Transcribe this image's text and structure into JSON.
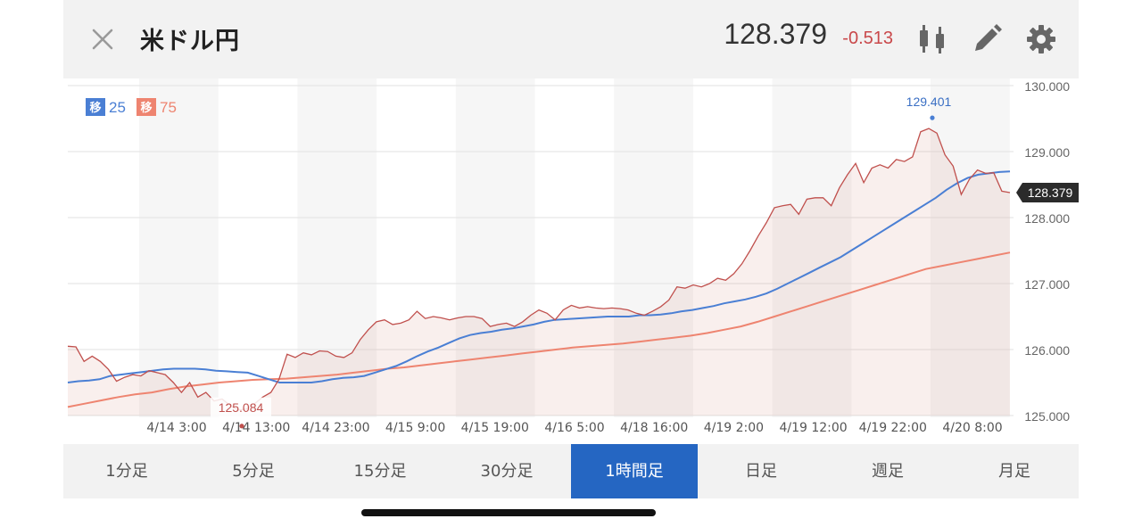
{
  "header": {
    "title": "米ドル円",
    "price": "128.379",
    "change": "-0.513"
  },
  "legend": {
    "badge_label": "移",
    "ma_short": "25",
    "ma_long": "75"
  },
  "timeframes": [
    "1分足",
    "5分足",
    "15分足",
    "30分足",
    "1時間足",
    "日足",
    "週足",
    "月足"
  ],
  "active_timeframe": 4,
  "colors": {
    "price_line": "#c0504d",
    "ma_short": "#4a7fd4",
    "ma_long": "#ee8470",
    "active_tab": "#2566c2",
    "price_tag": "#2b2b2b"
  },
  "chart_data": {
    "type": "line",
    "x_tick_labels": [
      "4/14 3:00",
      "4/14 13:00",
      "4/14 23:00",
      "4/15 9:00",
      "4/15 19:00",
      "4/16 5:00",
      "4/18 16:00",
      "4/19 2:00",
      "4/19 12:00",
      "4/19 22:00",
      "4/20 8:00"
    ],
    "ylim": [
      125.0,
      130.0
    ],
    "y_ticks": [
      "125.000",
      "126.000",
      "127.000",
      "128.000",
      "129.000",
      "130.000"
    ],
    "last_price": "128.379",
    "high_label": "129.401",
    "low_label": "125.084",
    "series": [
      {
        "name": "price",
        "values": [
          126.05,
          126.04,
          125.82,
          125.9,
          125.82,
          125.7,
          125.52,
          125.58,
          125.62,
          125.6,
          125.68,
          125.65,
          125.62,
          125.5,
          125.35,
          125.5,
          125.28,
          125.35,
          125.22,
          125.25,
          125.15,
          125.084,
          125.1,
          125.18,
          125.28,
          125.35,
          125.55,
          125.93,
          125.88,
          125.95,
          125.92,
          125.98,
          125.97,
          125.9,
          125.88,
          125.95,
          126.15,
          126.3,
          126.42,
          126.45,
          126.38,
          126.4,
          126.45,
          126.58,
          126.47,
          126.5,
          126.48,
          126.45,
          126.48,
          126.5,
          126.5,
          126.47,
          126.35,
          126.38,
          126.4,
          126.35,
          126.42,
          126.52,
          126.6,
          126.55,
          126.45,
          126.6,
          126.67,
          126.63,
          126.65,
          126.63,
          126.62,
          126.63,
          126.62,
          126.6,
          126.55,
          126.52,
          126.58,
          126.65,
          126.75,
          126.95,
          126.93,
          126.98,
          126.95,
          127.0,
          127.08,
          127.05,
          127.15,
          127.3,
          127.5,
          127.72,
          127.92,
          128.15,
          128.18,
          128.2,
          128.05,
          128.28,
          128.3,
          128.3,
          128.18,
          128.45,
          128.65,
          128.82,
          128.53,
          128.75,
          128.8,
          128.75,
          128.88,
          128.85,
          128.92,
          129.3,
          129.35,
          129.28,
          128.95,
          128.78,
          128.35,
          128.58,
          128.72,
          128.67,
          128.68,
          128.4,
          128.379
        ]
      },
      {
        "name": "25",
        "values": [
          125.5,
          125.52,
          125.53,
          125.55,
          125.6,
          125.62,
          125.64,
          125.66,
          125.68,
          125.7,
          125.71,
          125.71,
          125.71,
          125.7,
          125.68,
          125.67,
          125.66,
          125.65,
          125.6,
          125.55,
          125.5,
          125.5,
          125.5,
          125.5,
          125.52,
          125.55,
          125.57,
          125.58,
          125.6,
          125.65,
          125.7,
          125.75,
          125.82,
          125.9,
          125.97,
          126.03,
          126.1,
          126.17,
          126.22,
          126.25,
          126.27,
          126.3,
          126.32,
          126.35,
          126.38,
          126.42,
          126.45,
          126.46,
          126.47,
          126.48,
          126.49,
          126.5,
          126.5,
          126.5,
          126.52,
          126.52,
          126.53,
          126.55,
          126.58,
          126.6,
          126.63,
          126.66,
          126.7,
          126.73,
          126.76,
          126.8,
          126.85,
          126.92,
          127.0,
          127.08,
          127.16,
          127.24,
          127.32,
          127.4,
          127.5,
          127.6,
          127.7,
          127.8,
          127.9,
          128.0,
          128.1,
          128.2,
          128.3,
          128.42,
          128.52,
          128.6,
          128.65,
          128.67,
          128.69,
          128.7
        ]
      },
      {
        "name": "75",
        "values": [
          125.13,
          125.18,
          125.23,
          125.28,
          125.32,
          125.35,
          125.4,
          125.44,
          125.47,
          125.5,
          125.52,
          125.54,
          125.55,
          125.56,
          125.58,
          125.6,
          125.62,
          125.65,
          125.68,
          125.71,
          125.73,
          125.76,
          125.79,
          125.82,
          125.85,
          125.88,
          125.91,
          125.94,
          125.97,
          126.0,
          126.03,
          126.05,
          126.07,
          126.09,
          126.12,
          126.15,
          126.18,
          126.21,
          126.25,
          126.3,
          126.35,
          126.42,
          126.5,
          126.58,
          126.66,
          126.74,
          126.82,
          126.9,
          126.98,
          127.06,
          127.14,
          127.22,
          127.27,
          127.32,
          127.37,
          127.42,
          127.47
        ]
      }
    ]
  }
}
